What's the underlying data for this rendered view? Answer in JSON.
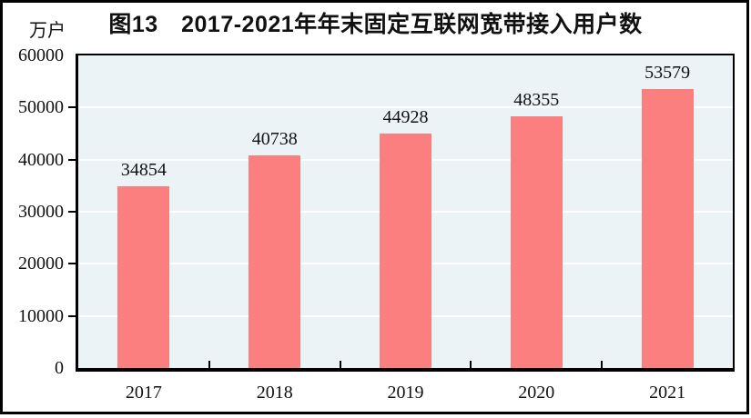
{
  "chart_data": {
    "type": "bar",
    "title": "图13　2017-2021年年末固定互联网宽带接入用户数",
    "unit_label": "万户",
    "categories": [
      "2017",
      "2018",
      "2019",
      "2020",
      "2021"
    ],
    "values": [
      34854,
      40738,
      44928,
      48355,
      53579
    ],
    "series_name": "固定互联网宽带接入用户数",
    "xlabel": "",
    "ylabel": "万户",
    "ylim": [
      0,
      60000
    ],
    "yticks": [
      0,
      10000,
      20000,
      30000,
      40000,
      50000,
      60000
    ],
    "grid": true,
    "legend_position": "none",
    "data_labels": true,
    "colors": {
      "bar": "#fc7f7f",
      "plot_background": "#ebf3f6",
      "gridline": "#ffffff",
      "axis": "#000000",
      "text": "#111111",
      "frame": "#000000",
      "page_background": "#ffffff"
    }
  }
}
